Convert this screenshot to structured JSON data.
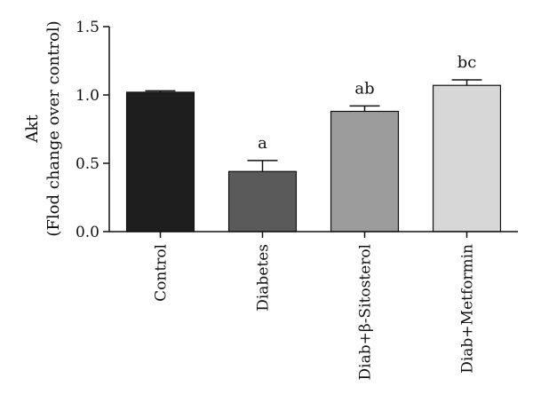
{
  "chart_data": {
    "type": "bar",
    "title": "",
    "xlabel": "",
    "ylabel": "Akt",
    "ylabel_sub": "(Flod change over control)",
    "ylim": [
      0,
      1.5
    ],
    "yticks": [
      "0.0",
      "0.5",
      "1.0",
      "1.5"
    ],
    "grid": false,
    "categories": [
      "Control",
      "Diabetes",
      "Diab+β-Sitosterol",
      "Diab+Metformin"
    ],
    "values": [
      1.02,
      0.44,
      0.88,
      1.07
    ],
    "errors": [
      0.01,
      0.08,
      0.04,
      0.04
    ],
    "annotations": [
      "",
      "a",
      "ab",
      "bc"
    ],
    "colors": [
      "#1e1e1e",
      "#5a5a5a",
      "#9c9c9c",
      "#d7d7d7"
    ]
  }
}
